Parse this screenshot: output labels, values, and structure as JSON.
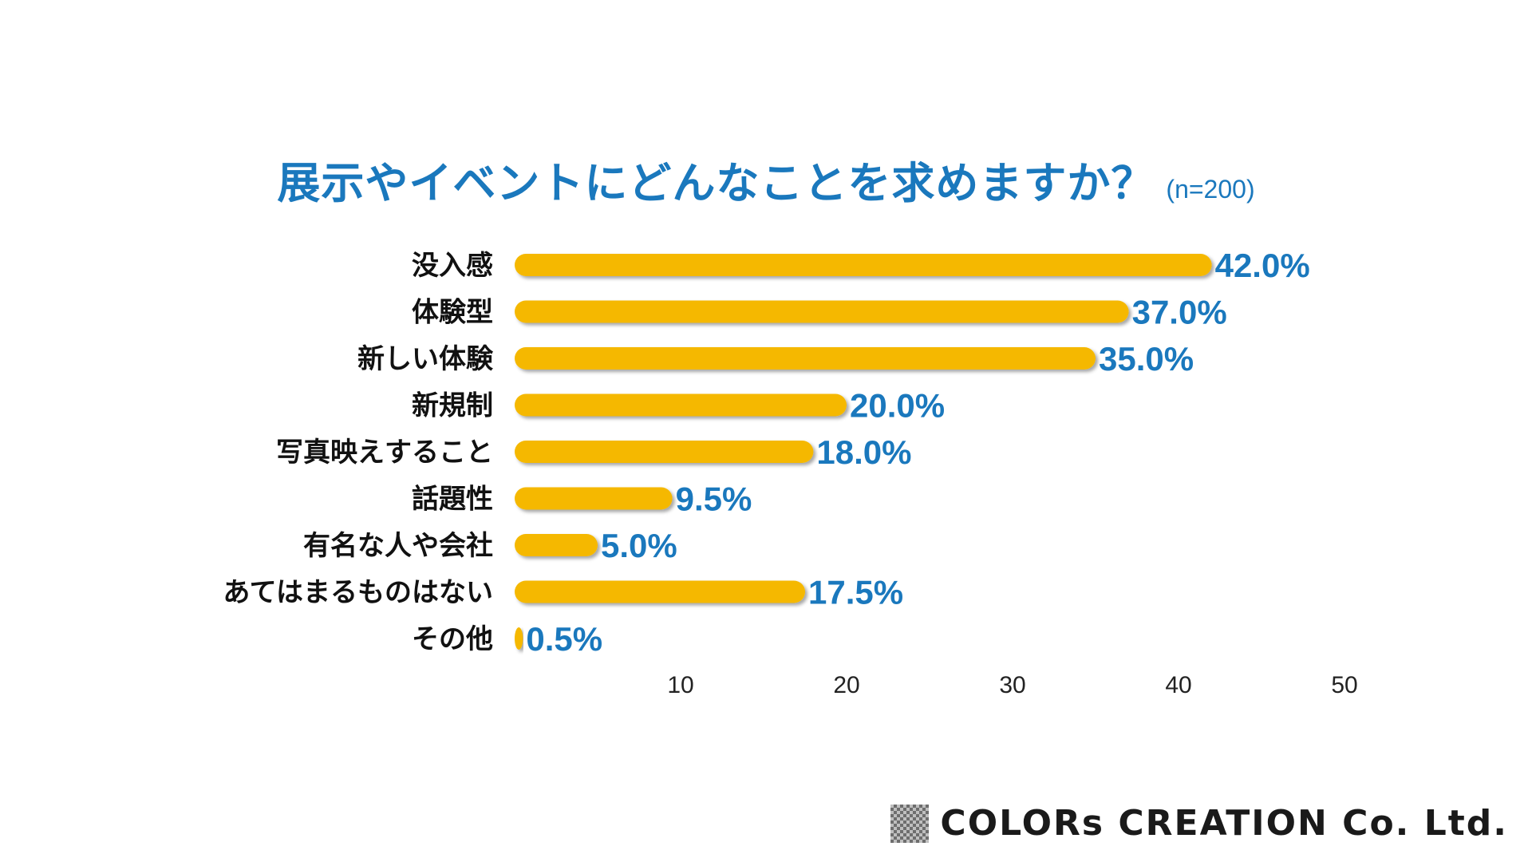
{
  "chart_data": {
    "type": "bar",
    "orientation": "horizontal",
    "title": "展示やイベントにどんなことを求めますか？",
    "subtitle": "(n=200)",
    "categories": [
      "没入感",
      "体験型",
      "新しい体験",
      "新規制",
      "写真映えすること",
      "話題性",
      "有名な人や会社",
      "あてはまるものはない",
      "その他"
    ],
    "values": [
      42.0,
      37.0,
      35.0,
      20.0,
      18.0,
      9.5,
      5.0,
      17.5,
      0.5
    ],
    "value_labels": [
      "42.0%",
      "37.0%",
      "35.0%",
      "20.0%",
      "18.0%",
      "9.5%",
      "5.0%",
      "17.5%",
      "0.5%"
    ],
    "xlim": [
      0,
      50
    ],
    "x_ticks": [
      10,
      20,
      30,
      40,
      50
    ],
    "x_tick_labels": [
      "10",
      "20",
      "30",
      "40",
      "50"
    ],
    "xlabel": "",
    "ylabel": "",
    "grid": false,
    "legend": "none",
    "colors": {
      "bar": "#f5b800",
      "value_label": "#1a78bd",
      "title": "#1a78bd"
    }
  },
  "footer": {
    "brand": "COLORs CREATION Co. Ltd.",
    "logo_icon": "checkerboard-icon"
  }
}
